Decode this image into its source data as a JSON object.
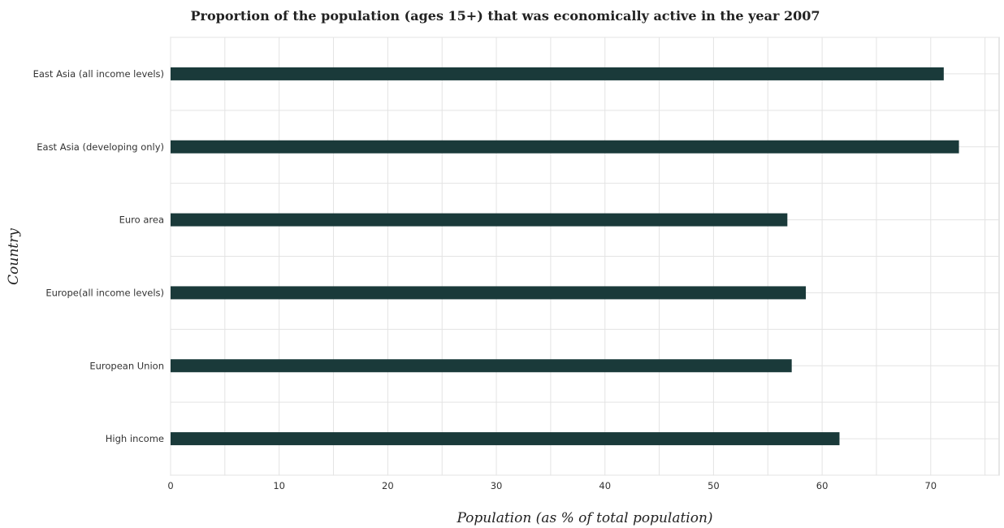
{
  "chart_data": {
    "type": "bar",
    "orientation": "horizontal",
    "title": "Proportion of the population (ages 15+) that was economically active in the year 2007",
    "xlabel": "Population (as % of total population)",
    "ylabel": "Country",
    "categories": [
      "East Asia (all income levels)",
      "East Asia (developing only)",
      "Euro area",
      "Europe(all income levels)",
      "European Union",
      "High income"
    ],
    "values": [
      71.2,
      72.6,
      56.8,
      58.5,
      57.2,
      61.6
    ],
    "xlim": [
      0,
      76.3
    ],
    "xticks": [
      0,
      10,
      20,
      30,
      40,
      50,
      60,
      70
    ],
    "grid": true,
    "bar_color": "#1a3a3a"
  }
}
